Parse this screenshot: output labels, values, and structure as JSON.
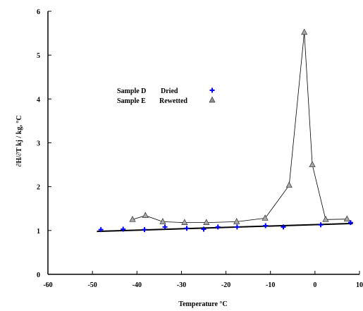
{
  "chart_data": {
    "type": "scatter",
    "xlabel": "Temperature °C",
    "ylabel": "∂H/∂T     kj / kg, °C",
    "xlim": [
      -60,
      10
    ],
    "ylim": [
      0,
      6
    ],
    "xticks": [
      -60,
      -50,
      -40,
      -30,
      -20,
      -10,
      0,
      10
    ],
    "yticks": [
      0,
      1,
      2,
      3,
      4,
      5,
      6
    ],
    "grid": false,
    "legend_position": "upper-left",
    "legend": [
      {
        "sample": "Sample D",
        "condition": "Dried",
        "marker": "+",
        "color": "#0000ff"
      },
      {
        "sample": "Sample E",
        "condition": "Rewetted",
        "marker": "triangle",
        "color": "#909090"
      }
    ],
    "series": [
      {
        "name": "Sample D Dried",
        "marker": "plus",
        "color": "#0000ff",
        "connected": false,
        "x": [
          -48.1,
          -43.1,
          -38.3,
          -33.7,
          -28.8,
          -25.0,
          -21.8,
          -17.5,
          -11.1,
          -7.1,
          1.3,
          8.0
        ],
        "y": [
          1.02,
          1.03,
          1.02,
          1.08,
          1.05,
          1.03,
          1.08,
          1.08,
          1.11,
          1.08,
          1.13,
          1.18
        ]
      },
      {
        "name": "Sample E Rewetted",
        "marker": "triangle",
        "color": "#a8a8a8",
        "connected": true,
        "x": [
          -41.0,
          -38.1,
          -34.2,
          -29.3,
          -24.4,
          -17.6,
          -11.2,
          -5.8,
          -2.4,
          -0.6,
          2.4,
          7.2
        ],
        "y": [
          1.25,
          1.34,
          1.2,
          1.18,
          1.18,
          1.2,
          1.28,
          2.03,
          5.52,
          2.5,
          1.25,
          1.26
        ]
      }
    ],
    "fit_line": {
      "x": [
        -49,
        8.5
      ],
      "y": [
        0.98,
        1.16
      ],
      "color": "#000000"
    }
  }
}
